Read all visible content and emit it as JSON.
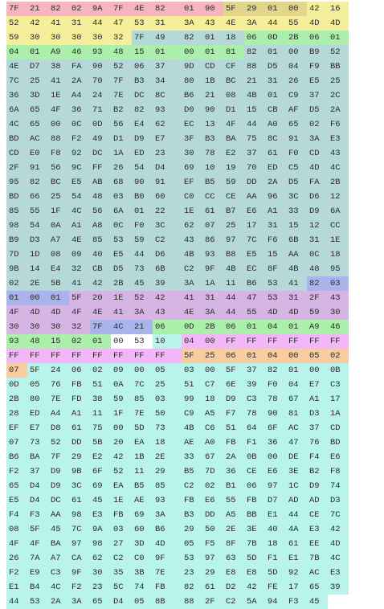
{
  "colors": {
    "pink": "#f7b5bf",
    "yellow": "#f5ee9a",
    "gold": "#e2d68a",
    "green": "#aaf0ab",
    "teal": "#b5d8d9",
    "violet": "#d6b4e3",
    "blue": "#a9b4ec",
    "magenta": "#f3b6f8",
    "peach": "#f7cc9e",
    "cyan": "#b8f4ec",
    "white": "#ffffff"
  },
  "rows": [
    "7F 21 82 02 9A 7F 4E 82 01 90 5F 29 01 00 42 16",
    "52 42 41 31 44 47 53 31 3A 43 4E 3A 44 55 4D 4D",
    "59 30 30 30 30 32 7F 49 82 01 18 06 0D 2B 06 01",
    "04 01 A9 46 93 48 15 01 00 01 81 82 01 00 B9 52",
    "4E D7 38 FA 90 52 06 37 9D CD CF 88 D5 04 F9 BB",
    "7C 25 41 2A 70 7F B3 34 80 1B BC 21 31 26 E5 25",
    "36 3D 1E A4 24 7E DC 8C B6 21 08 4B 01 C9 37 2C",
    "6A 65 4F 36 71 B2 82 93 D0 90 D1 15 CB AF D5 2A",
    "4C 65 00 0C 0D 56 E4 62 EC 13 4F 44 A0 65 02 F6",
    "BD AC 88 F2 49 D1 D9 E7 3F B3 BA 75 8C 91 3A E3",
    "CD E0 F8 92 DC 1A ED 23 30 78 E2 37 61 F0 CD 43",
    "2F 91 56 9C FF 26 54 D4 69 10 19 70 ED C5 4D 4C",
    "95 82 BC E5 AB 68 90 91 EF B5 59 DD 2A D5 FA 2B",
    "BD 66 25 54 48 03 B0 60 C0 CC CE AA 96 3C D6 12",
    "85 55 1F 4C 56 6A 01 22 1E 61 B7 E6 A1 33 D9 6A",
    "98 54 0A A1 A8 0C F0 3C 62 07 25 17 31 15 12 CC",
    "B9 D3 A7 4E 85 53 59 C2 43 86 97 7C F6 6B 31 1E",
    "7D 1D 08 09 40 E5 44 D6 4B 93 B8 E5 15 AA 0C 18",
    "9B 14 E4 32 CB D5 73 6B C2 9F 4B EC 8F 4B 48 95",
    "02 2E 5B 41 42 2B 45 39 3A 1A 11 B6 53 41 82 03",
    "01 00 01 5F 20 1E 52 42 41 31 44 47 53 31 2F 43",
    "4F 4D 4D 4F 4E 41 3A 43 4E 3A 44 55 4D 4D 59 30",
    "30 30 30 32 7F 4C 21 06 0D 2B 06 01 04 01 A9 46",
    "93 48 15 02 01 00 53 10 04 00 FF FF FF FF FF FF",
    "FF FF FF FF FF FF FF FF 5F 25 06 01 04 00 05 02",
    "07 5F 24 06 02 09 00 05 03 00 5F 37 82 01 00 0B",
    "0D 05 76 FB 51 0A 7C 25 51 C7 6E 39 F0 04 E7 C3",
    "2B 80 7E FD 38 59 85 03 99 18 D9 C3 78 67 A1 17",
    "28 ED A4 A1 11 1F 7E 50 C9 A5 F7 78 90 81 D3 1A",
    "EF E7 D8 61 75 00 5D 73 4B C6 51 64 6F AC 37 CD",
    "07 73 52 DD 5B 20 EA 18 AE A0 FB F1 36 47 76 BD",
    "B6 BA 7F 29 E2 42 1B 2E 33 67 2A 0B 00 DE F4 E6",
    "F2 37 D9 9B 6F 52 11 29 B5 7D 36 CE E6 3E B2 F8",
    "65 D4 D9 3C 69 EA B5 85 C2 02 B1 06 97 1C D9 74",
    "E5 D4 DC 61 45 1E AE 93 FB E6 55 FB D7 AD AD D3",
    "F4 F3 AA 98 E3 FB 69 3A B3 DD A5 BB E1 44 CE 7C",
    "08 5F 45 7C 9A 03 60 B6 29 50 2E 3E 40 4A E3 42",
    "4F 4F BA 97 98 27 3D 4D 05 F5 8F 7B 18 61 EE 4D",
    "26 7A A7 CA 62 C2 C0 9F 53 97 63 5D F1 E1 7B 4C",
    "F2 E9 C3 9F 30 35 3B 7E 23 29 E8 E8 5D 92 AC E3",
    "E1 B4 4C F2 23 5C 74 FB 82 61 D2 42 FE 17 65 39",
    "44 53 2A 3A 65 D4 05 8B 88 2F C2 5A 94 F3 45"
  ]
}
